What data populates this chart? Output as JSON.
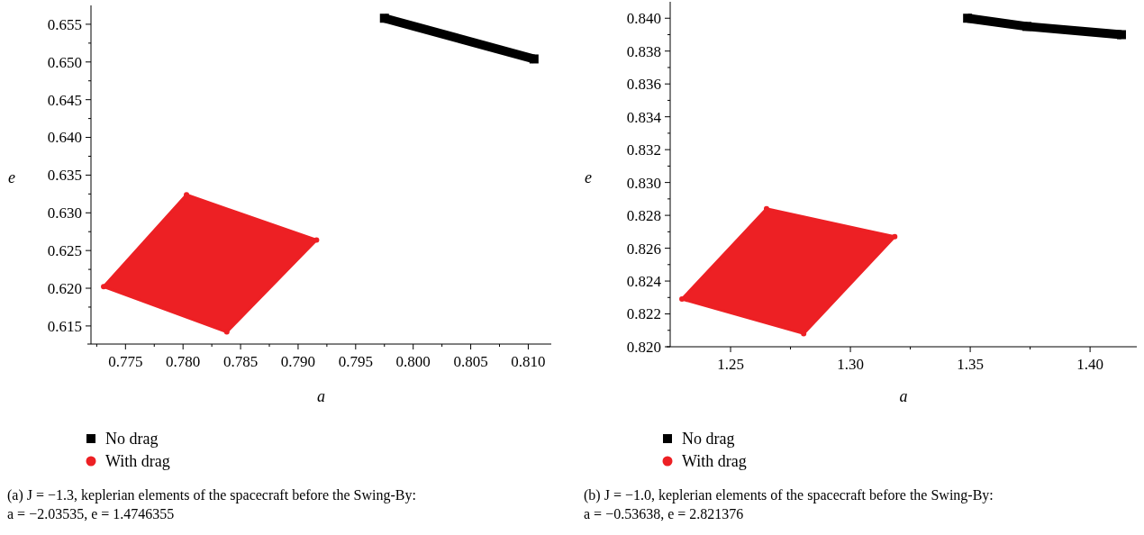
{
  "chart_data": [
    {
      "type": "scatter",
      "xlabel": "a",
      "ylabel": "e",
      "legend": "bottom",
      "grid": false,
      "xlim": [
        0.772,
        0.812
      ],
      "ylim": [
        0.6126,
        0.6575
      ],
      "xticks": [
        {
          "value": 0.7725,
          "label": null
        },
        0.775,
        {
          "value": 0.7775,
          "label": null
        },
        {
          "value": 0.78,
          "label": "0.780"
        },
        {
          "value": 0.7825,
          "label": null
        },
        0.785,
        {
          "value": 0.7875,
          "label": null
        },
        {
          "value": 0.79,
          "label": "0.790"
        },
        {
          "value": 0.7925,
          "label": null
        },
        0.795,
        {
          "value": 0.7975,
          "label": null
        },
        {
          "value": 0.8,
          "label": "0.800"
        },
        {
          "value": 0.8025,
          "label": null
        },
        0.805,
        {
          "value": 0.8075,
          "label": null
        },
        {
          "value": 0.81,
          "label": "0.810"
        }
      ],
      "yticks": [
        0.615,
        {
          "value": 0.6175,
          "label": null
        },
        {
          "value": 0.62,
          "label": "0.620"
        },
        {
          "value": 0.6225,
          "label": null
        },
        0.625,
        {
          "value": 0.6275,
          "label": null
        },
        {
          "value": 0.63,
          "label": "0.630"
        },
        {
          "value": 0.6325,
          "label": null
        },
        0.635,
        {
          "value": 0.6375,
          "label": null
        },
        {
          "value": 0.64,
          "label": "0.640"
        },
        {
          "value": 0.6425,
          "label": null
        },
        0.645,
        {
          "value": 0.6475,
          "label": null
        },
        {
          "value": 0.65,
          "label": "0.650"
        },
        {
          "value": 0.6525,
          "label": null
        },
        0.655
      ],
      "series": [
        {
          "name": "No drag",
          "type": "line",
          "marker": "square",
          "color": "#000000",
          "x": [
            0.7975,
            0.8105
          ],
          "values": [
            0.6558,
            0.6504
          ]
        },
        {
          "name": "With drag",
          "type": "area",
          "marker": "circle",
          "color": "#ed2024",
          "x": [
            0.7731,
            0.7803,
            0.7916,
            0.7838
          ],
          "values": [
            0.6202,
            0.6324,
            0.6264,
            0.6142
          ]
        }
      ],
      "annotations": [
        "(a) J = −1.3, keplerian elements of the spacecraft before the Swing-By:",
        "a = −2.03535, e = 1.4746355"
      ]
    },
    {
      "type": "scatter",
      "xlabel": "a",
      "ylabel": "e",
      "legend": "bottom",
      "grid": false,
      "xlim": [
        1.2248,
        1.4195
      ],
      "ylim": [
        0.82,
        0.841
      ],
      "xticks": [
        1.25,
        {
          "value": 1.275,
          "label": null
        },
        {
          "value": 1.3,
          "label": "1.30"
        },
        {
          "value": 1.325,
          "label": null
        },
        1.35,
        {
          "value": 1.375,
          "label": null
        },
        {
          "value": 1.4,
          "label": "1.40"
        }
      ],
      "yticks": [
        {
          "value": 0.82,
          "label": "0.820"
        },
        {
          "value": 0.821,
          "label": null
        },
        0.822,
        {
          "value": 0.823,
          "label": null
        },
        0.824,
        {
          "value": 0.825,
          "label": null
        },
        0.826,
        {
          "value": 0.827,
          "label": null
        },
        0.828,
        {
          "value": 0.829,
          "label": null
        },
        {
          "value": 0.83,
          "label": "0.830"
        },
        {
          "value": 0.831,
          "label": null
        },
        0.832,
        {
          "value": 0.833,
          "label": null
        },
        0.834,
        {
          "value": 0.835,
          "label": null
        },
        0.836,
        {
          "value": 0.837,
          "label": null
        },
        0.838,
        {
          "value": 0.839,
          "label": null
        },
        {
          "value": 0.84,
          "label": "0.840"
        }
      ],
      "series": [
        {
          "name": "No drag",
          "type": "line",
          "marker": "square",
          "color": "#000000",
          "x": [
            1.3489,
            1.3737,
            1.4131
          ],
          "values": [
            0.84,
            0.8395,
            0.839
          ]
        },
        {
          "name": "With drag",
          "type": "area",
          "marker": "circle",
          "color": "#ed2024",
          "x": [
            1.2297,
            1.265,
            1.3185,
            1.2805
          ],
          "values": [
            0.8229,
            0.8284,
            0.8267,
            0.8208
          ]
        }
      ],
      "annotations": [
        "(b) J = −1.0, keplerian elements of the spacecraft before the Swing-By:",
        "a = −0.53638, e = 2.821376"
      ]
    }
  ]
}
